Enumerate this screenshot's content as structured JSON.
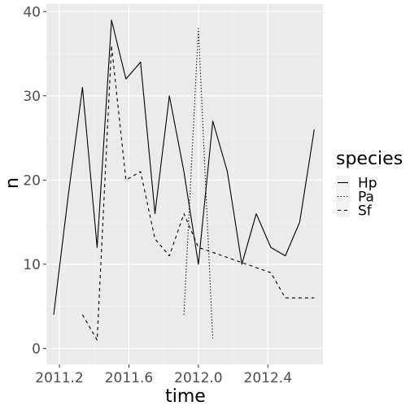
{
  "chart_data": {
    "type": "line",
    "xlabel": "time",
    "ylabel": "n",
    "xlim": [
      2011.125,
      2012.717
    ],
    "ylim": [
      -1.9,
      40.9
    ],
    "xticks": [
      2011.2,
      2011.6,
      2012.0,
      2012.4
    ],
    "xtick_labels": [
      "2011.2",
      "2011.6",
      "2012.0",
      "2012.4"
    ],
    "yticks": [
      0,
      10,
      20,
      30,
      40
    ],
    "ytick_labels": [
      "0",
      "10",
      "20",
      "30",
      "40"
    ],
    "grid": true,
    "legend": {
      "title": "species",
      "position": "right"
    },
    "series": [
      {
        "name": "Hp",
        "linetype": "solid",
        "x": [
          2011.167,
          2011.25,
          2011.333,
          2011.417,
          2011.5,
          2011.583,
          2011.667,
          2011.75,
          2011.833,
          2011.917,
          2012.0,
          2012.083,
          2012.167,
          2012.25,
          2012.333,
          2012.417,
          2012.5,
          2012.583,
          2012.667
        ],
        "values": [
          4,
          18,
          31,
          12,
          39,
          32,
          34,
          16,
          30,
          21,
          10,
          27,
          21,
          10,
          16,
          12,
          11,
          15,
          26
        ]
      },
      {
        "name": "Pa",
        "linetype": "dotted",
        "x": [
          2011.917,
          2012.0,
          2012.083
        ],
        "values": [
          4,
          38,
          1
        ]
      },
      {
        "name": "Sf",
        "linetype": "dashed",
        "x": [
          2011.333,
          2011.417,
          2011.5,
          2011.583,
          2011.667,
          2011.75,
          2011.833,
          2011.917,
          2012.0,
          2012.417,
          2012.5,
          2012.583,
          2012.667
        ],
        "values": [
          4,
          1,
          36,
          20,
          21,
          13,
          11,
          16,
          12,
          9,
          6,
          6,
          6
        ]
      }
    ]
  }
}
